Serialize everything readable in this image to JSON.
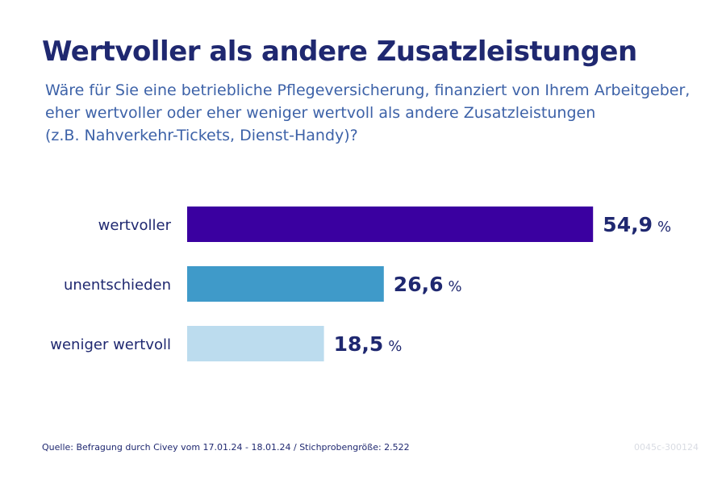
{
  "title": "Wertvoller als andere Zusatzleistungen",
  "subtitle_lines": [
    "Wäre für Sie eine betriebliche Pflegeversicherung, finanziert von Ihrem Arbeitgeber,",
    "eher wertvoller oder eher weniger wertvoll als andere Zusatzleistungen",
    "(z.B. Nahverkehr-Tickets, Dienst-Handy)?"
  ],
  "footer": {
    "source": "Quelle: Befragung durch Civey vom 17.01.24 - 18.01.24 / Stichprobengröße: 2.522",
    "id": "0045c-300124"
  },
  "colors": {
    "title": "#1f2870",
    "subtitle": "#3d62a8",
    "value_text": "#1f2870",
    "label_text": "#1f2870"
  },
  "chart_data": {
    "type": "bar",
    "orientation": "horizontal",
    "categories": [
      "wertvoller",
      "unentschieden",
      "weniger wertvoll"
    ],
    "values": [
      54.9,
      26.6,
      18.5
    ],
    "value_labels": [
      "54,9",
      "26,6",
      "18,5"
    ],
    "unit": "%",
    "bar_colors": [
      "#3a00a0",
      "#3f9ac9",
      "#bcdcee"
    ],
    "xlim": [
      0,
      60
    ],
    "grid": false,
    "legend": "none"
  }
}
